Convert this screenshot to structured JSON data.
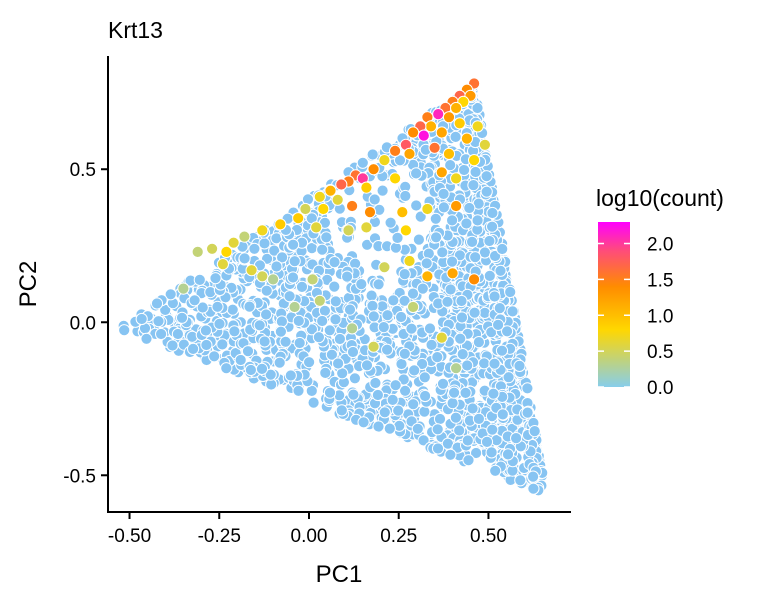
{
  "chart_data": {
    "type": "scatter",
    "title": "Krt13",
    "xlabel": "PC1",
    "ylabel": "PC2",
    "xlim": [
      -0.56,
      0.73
    ],
    "ylim": [
      -0.62,
      0.87
    ],
    "x_ticks": [
      {
        "value": -0.5,
        "label": "-0.50"
      },
      {
        "value": -0.25,
        "label": "-0.25"
      },
      {
        "value": 0.0,
        "label": "0.00"
      },
      {
        "value": 0.25,
        "label": "0.25"
      },
      {
        "value": 0.5,
        "label": "0.50"
      }
    ],
    "y_ticks": [
      {
        "value": -0.5,
        "label": "-0.5"
      },
      {
        "value": 0.0,
        "label": "0.0"
      },
      {
        "value": 0.5,
        "label": "0.5"
      }
    ],
    "region": {
      "description": "triangular point cloud",
      "vertices": [
        [
          -0.53,
          -0.02
        ],
        [
          0.46,
          0.78
        ],
        [
          0.66,
          -0.56
        ]
      ]
    },
    "n_points_approx": 2200,
    "color_scale": {
      "title": "log10(count)",
      "min": 0.0,
      "max": 2.3,
      "ticks": [
        {
          "value": 0.0,
          "label": "0.0"
        },
        {
          "value": 0.5,
          "label": "0.5"
        },
        {
          "value": 1.0,
          "label": "1.0"
        },
        {
          "value": 1.5,
          "label": "1.5"
        },
        {
          "value": 2.0,
          "label": "2.0"
        }
      ],
      "stops": [
        {
          "value": 0.0,
          "color": "#87CEEB"
        },
        {
          "value": 0.8,
          "color": "#FFD700"
        },
        {
          "value": 1.4,
          "color": "#FF8C00"
        },
        {
          "value": 1.9,
          "color": "#FF4C7A"
        },
        {
          "value": 2.3,
          "color": "#FF00FF"
        }
      ]
    },
    "background_point_color": "#87C4F2",
    "highlight_points": [
      [
        0.46,
        0.78,
        1.6
      ],
      [
        0.44,
        0.76,
        1.4
      ],
      [
        0.42,
        0.74,
        1.7
      ],
      [
        0.45,
        0.74,
        1.3
      ],
      [
        0.4,
        0.72,
        1.5
      ],
      [
        0.43,
        0.72,
        0.8
      ],
      [
        0.38,
        0.7,
        1.6
      ],
      [
        0.41,
        0.7,
        1.1
      ],
      [
        0.36,
        0.68,
        2.1
      ],
      [
        0.33,
        0.67,
        1.5
      ],
      [
        0.39,
        0.67,
        1.3
      ],
      [
        0.34,
        0.64,
        1.1
      ],
      [
        0.31,
        0.64,
        1.7
      ],
      [
        0.29,
        0.62,
        1.4
      ],
      [
        0.32,
        0.61,
        2.2
      ],
      [
        0.37,
        0.62,
        1.2
      ],
      [
        0.42,
        0.65,
        0.9
      ],
      [
        0.47,
        0.64,
        0.7
      ],
      [
        0.44,
        0.6,
        1.1
      ],
      [
        0.49,
        0.58,
        0.6
      ],
      [
        0.27,
        0.58,
        1.8
      ],
      [
        0.24,
        0.56,
        1.5
      ],
      [
        0.28,
        0.55,
        1.2
      ],
      [
        0.35,
        0.57,
        1.6
      ],
      [
        0.39,
        0.55,
        1.0
      ],
      [
        0.46,
        0.53,
        0.8
      ],
      [
        0.21,
        0.53,
        0.7
      ],
      [
        0.18,
        0.5,
        1.4
      ],
      [
        0.13,
        0.48,
        1.6
      ],
      [
        0.15,
        0.47,
        2.0
      ],
      [
        0.11,
        0.46,
        1.5
      ],
      [
        0.09,
        0.45,
        1.7
      ],
      [
        0.16,
        0.44,
        0.9
      ],
      [
        0.24,
        0.47,
        0.8
      ],
      [
        0.37,
        0.49,
        1.2
      ],
      [
        0.41,
        0.47,
        0.7
      ],
      [
        0.06,
        0.43,
        1.1
      ],
      [
        0.03,
        0.41,
        0.7
      ],
      [
        0.08,
        0.4,
        0.6
      ],
      [
        0.12,
        0.38,
        1.5
      ],
      [
        0.17,
        0.36,
        1.4
      ],
      [
        0.04,
        0.37,
        0.8
      ],
      [
        -0.01,
        0.37,
        0.5
      ],
      [
        0.26,
        0.36,
        1.0
      ],
      [
        0.33,
        0.37,
        0.7
      ],
      [
        0.41,
        0.38,
        1.3
      ],
      [
        -0.03,
        0.34,
        0.9
      ],
      [
        0.02,
        0.31,
        0.6
      ],
      [
        0.11,
        0.3,
        0.5
      ],
      [
        0.16,
        0.31,
        0.6
      ],
      [
        0.27,
        0.3,
        0.8
      ],
      [
        -0.08,
        0.32,
        0.9
      ],
      [
        -0.13,
        0.3,
        0.7
      ],
      [
        -0.18,
        0.28,
        0.4
      ],
      [
        -0.21,
        0.26,
        0.6
      ],
      [
        -0.23,
        0.23,
        0.8
      ],
      [
        -0.27,
        0.24,
        0.5
      ],
      [
        -0.31,
        0.23,
        0.4
      ],
      [
        -0.24,
        0.19,
        0.6
      ],
      [
        0.28,
        0.2,
        0.7
      ],
      [
        0.21,
        0.18,
        0.5
      ],
      [
        0.33,
        0.15,
        1.1
      ],
      [
        0.01,
        0.14,
        0.4
      ],
      [
        -0.13,
        0.15,
        0.5
      ],
      [
        -0.16,
        0.17,
        0.6
      ],
      [
        -0.1,
        0.14,
        0.3
      ],
      [
        0.4,
        0.16,
        1.2
      ],
      [
        0.46,
        0.14,
        1.4
      ],
      [
        0.03,
        0.07,
        0.4
      ],
      [
        -0.04,
        0.05,
        0.3
      ],
      [
        0.29,
        0.05,
        0.4
      ],
      [
        0.12,
        -0.02,
        0.3
      ],
      [
        0.37,
        -0.05,
        0.6
      ],
      [
        0.41,
        -0.15,
        0.3
      ],
      [
        0.18,
        -0.08,
        0.5
      ],
      [
        -0.35,
        0.11,
        0.3
      ]
    ]
  }
}
